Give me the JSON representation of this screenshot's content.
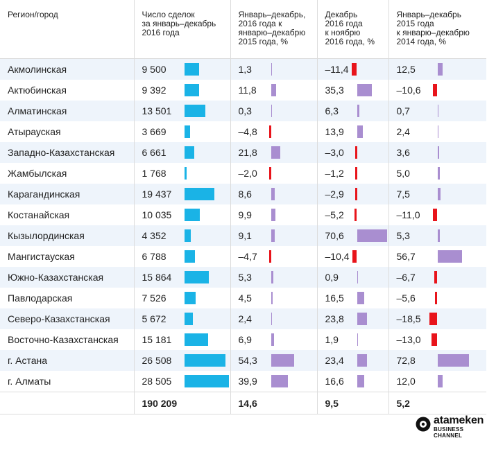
{
  "chart_data": {
    "type": "table",
    "headers": [
      "Регион/город",
      "Число сделок\nза январь–декабрь\n2016 года",
      "Январь–декабрь,\n2016 года к\nянварю–декабрю\n2015 года, %",
      "Декабрь\n2016 года\nк ноябрю\n2016 года, %",
      "Январь–декабрь\n2015 года\nк январю–декабрю\n2014 года, %"
    ],
    "rows": [
      {
        "region": "Акмолинская",
        "deals": 9500,
        "deals_text": "9 500",
        "yoy2016": 1.3,
        "yoy2016_text": "1,3",
        "mom": -11.4,
        "mom_text": "–11,4",
        "yoy2015": 12.5,
        "yoy2015_text": "12,5"
      },
      {
        "region": "Актюбинская",
        "deals": 9392,
        "deals_text": "9 392",
        "yoy2016": 11.8,
        "yoy2016_text": "11,8",
        "mom": 35.3,
        "mom_text": "35,3",
        "yoy2015": -10.6,
        "yoy2015_text": "–10,6"
      },
      {
        "region": "Алматинская",
        "deals": 13501,
        "deals_text": "13 501",
        "yoy2016": 0.3,
        "yoy2016_text": "0,3",
        "mom": 6.3,
        "mom_text": "6,3",
        "yoy2015": 0.7,
        "yoy2015_text": "0,7"
      },
      {
        "region": "Атырауская",
        "deals": 3669,
        "deals_text": "3 669",
        "yoy2016": -4.8,
        "yoy2016_text": "–4,8",
        "mom": 13.9,
        "mom_text": "13,9",
        "yoy2015": 2.4,
        "yoy2015_text": "2,4"
      },
      {
        "region": "Западно-Казахстанская",
        "deals": 6661,
        "deals_text": "6 661",
        "yoy2016": 21.8,
        "yoy2016_text": "21,8",
        "mom": -3.0,
        "mom_text": "–3,0",
        "yoy2015": 3.6,
        "yoy2015_text": "3,6"
      },
      {
        "region": "Жамбылская",
        "deals": 1768,
        "deals_text": "1 768",
        "yoy2016": -2.0,
        "yoy2016_text": "–2,0",
        "mom": -1.2,
        "mom_text": "–1,2",
        "yoy2015": 5.0,
        "yoy2015_text": "5,0"
      },
      {
        "region": "Карагандинская",
        "deals": 19437,
        "deals_text": "19 437",
        "yoy2016": 8.6,
        "yoy2016_text": "8,6",
        "mom": -2.9,
        "mom_text": "–2,9",
        "yoy2015": 7.5,
        "yoy2015_text": "7,5"
      },
      {
        "region": "Костанайская",
        "deals": 10035,
        "deals_text": "10 035",
        "yoy2016": 9.9,
        "yoy2016_text": "9,9",
        "mom": -5.2,
        "mom_text": "–5,2",
        "yoy2015": -11.0,
        "yoy2015_text": "–11,0"
      },
      {
        "region": "Кызылординская",
        "deals": 4352,
        "deals_text": "4 352",
        "yoy2016": 9.1,
        "yoy2016_text": "9,1",
        "mom": 70.6,
        "mom_text": "70,6",
        "yoy2015": 5.3,
        "yoy2015_text": "5,3"
      },
      {
        "region": "Мангистауская",
        "deals": 6788,
        "deals_text": "6 788",
        "yoy2016": -4.7,
        "yoy2016_text": "–4,7",
        "mom": -10.4,
        "mom_text": "–10,4",
        "yoy2015": 56.7,
        "yoy2015_text": "56,7"
      },
      {
        "region": "Южно-Казахстанская",
        "deals": 15864,
        "deals_text": "15 864",
        "yoy2016": 5.3,
        "yoy2016_text": "5,3",
        "mom": 0.9,
        "mom_text": "0,9",
        "yoy2015": -6.7,
        "yoy2015_text": "–6,7"
      },
      {
        "region": "Павлодарская",
        "deals": 7526,
        "deals_text": "7 526",
        "yoy2016": 4.5,
        "yoy2016_text": "4,5",
        "mom": 16.5,
        "mom_text": "16,5",
        "yoy2015": -5.6,
        "yoy2015_text": "–5,6"
      },
      {
        "region": "Северо-Казахстанская",
        "deals": 5672,
        "deals_text": "5 672",
        "yoy2016": 2.4,
        "yoy2016_text": "2,4",
        "mom": 23.8,
        "mom_text": "23,8",
        "yoy2015": -18.5,
        "yoy2015_text": "–18,5"
      },
      {
        "region": "Восточно-Казахстанская",
        "deals": 15181,
        "deals_text": "15 181",
        "yoy2016": 6.9,
        "yoy2016_text": "6,9",
        "mom": 1.9,
        "mom_text": "1,9",
        "yoy2015": -13.0,
        "yoy2015_text": "–13,0"
      },
      {
        "region": "г. Астана",
        "deals": 26508,
        "deals_text": "26 508",
        "yoy2016": 54.3,
        "yoy2016_text": "54,3",
        "mom": 23.4,
        "mom_text": "23,4",
        "yoy2015": 72.8,
        "yoy2015_text": "72,8"
      },
      {
        "region": "г. Алматы",
        "deals": 28505,
        "deals_text": "28 505",
        "yoy2016": 39.9,
        "yoy2016_text": "39,9",
        "mom": 16.6,
        "mom_text": "16,6",
        "yoy2015": 12.0,
        "yoy2015_text": "12,0"
      }
    ],
    "total": {
      "deals_text": "190 209",
      "yoy2016_text": "14,6",
      "mom_text": "9,5",
      "yoy2015_text": "5,2"
    },
    "colors": {
      "deals": "#1ab3e6",
      "positive": "#a98ed0",
      "negative": "#e8141b",
      "row_alt": "#eef4fb",
      "grid": "#dcdcdc"
    }
  },
  "logo": {
    "name": "atameken",
    "sub": "BUSINESS CHANNEL",
    "icon": "atameken-logo-icon"
  }
}
